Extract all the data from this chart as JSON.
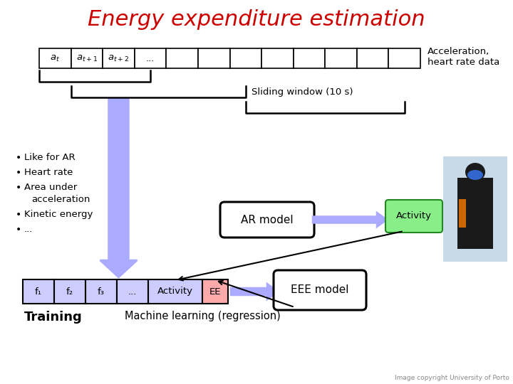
{
  "title": "Energy expenditure estimation",
  "title_color": "#cc0000",
  "title_fontsize": 22,
  "bg_color": "#ffffff",
  "accel_label": "Acceleration,\nheart rate data",
  "sliding_label": "Sliding window (10 s)",
  "bullet_points": [
    "Like for AR",
    "Heart rate",
    "Area under\nacceleration",
    "Kinetic energy",
    "..."
  ],
  "ar_model_label": "AR model",
  "activity_label_box": "Activity",
  "activity_box_color": "#88ee88",
  "feature_cells": [
    "f₁",
    "f₂",
    "f₃",
    "...",
    "Activity",
    "EE"
  ],
  "feature_cell_colors": [
    "#ccccff",
    "#ccccff",
    "#ccccff",
    "#ccccff",
    "#ccccff",
    "#ffaaaa"
  ],
  "eee_model_label": "EEE model",
  "training_label": "Training",
  "ml_label": "Machine learning (regression)",
  "copyright_label": "Image copyright University of Porto",
  "arrow_blue": "#4444dd",
  "arrow_light": "#aaaaff"
}
